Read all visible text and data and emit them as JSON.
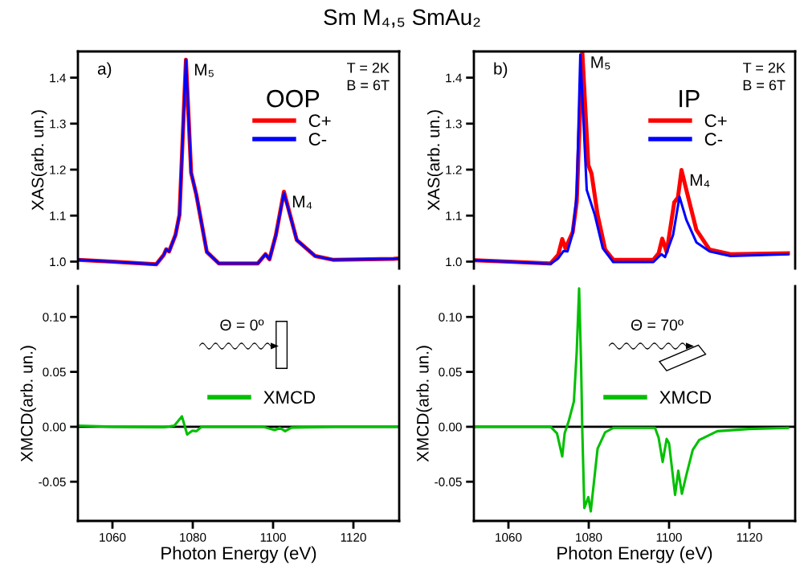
{
  "chart_data": [
    {
      "type": "line",
      "title": "Sm M₄,₅ SmAu₂",
      "ylabel": "XAS(arb. un.)",
      "xlim": [
        1051.4,
        1131.4
      ],
      "ylim": [
        0.985,
        1.457
      ],
      "yticks": [
        {
          "value": 1.0,
          "label": "1.0"
        },
        1.1,
        1.2,
        1.3,
        1.4
      ],
      "tick_labels": "y",
      "legend": "top right",
      "legend_title": "OOP",
      "grid": false,
      "x": [
        1051.4,
        1060,
        1070.9,
        1072.8,
        1073.4,
        1074.1,
        1075.7,
        1076.7,
        1078.3,
        1079.6,
        1080.9,
        1083.5,
        1086.5,
        1096.2,
        1098.1,
        1099.1,
        1100.7,
        1102.7,
        1105.9,
        1110.5,
        1114.9,
        1130,
        1131.4
      ],
      "series": [
        {
          "name": "C+",
          "color": "#ff0000",
          "values": [
            1.004,
            1.0,
            0.994,
            1.015,
            1.027,
            1.022,
            1.058,
            1.102,
            1.439,
            1.193,
            1.145,
            1.021,
            0.996,
            0.996,
            1.016,
            1.005,
            1.058,
            1.152,
            1.047,
            1.012,
            1.004,
            1.006,
            1.007
          ]
        },
        {
          "name": "C-",
          "color": "#0000ff",
          "values": [
            1.004,
            1.0,
            0.994,
            1.015,
            1.027,
            1.022,
            1.058,
            1.102,
            1.439,
            1.193,
            1.145,
            1.021,
            0.996,
            0.996,
            1.016,
            1.005,
            1.058,
            1.149,
            1.047,
            1.012,
            1.004,
            1.006,
            1.007
          ]
        }
      ],
      "annotations": [
        {
          "text": "M₅",
          "x": 1078.3,
          "y": 1.439
        },
        {
          "text": "M₄",
          "x": 1102.7,
          "y": 1.152
        },
        "a)",
        "T = 2K",
        "B = 6T"
      ]
    },
    {
      "type": "line",
      "xlabel": "Photon Energy (eV)",
      "ylabel": "XMCD(arb. un.)",
      "xlim": [
        1051.4,
        1131.4
      ],
      "ylim": [
        -0.0857,
        0.128
      ],
      "xticks": [
        1060,
        1080,
        1100,
        1120
      ],
      "yticks": [
        {
          "value": -0.05,
          "label": "-0.05"
        },
        {
          "value": 0,
          "label": "0.00"
        },
        {
          "value": 0.05,
          "label": "0.05"
        },
        {
          "value": 0.1,
          "label": "0.10"
        }
      ],
      "legend": "right",
      "grid": false,
      "ref_lines": [
        {
          "axis": "y",
          "value": 0,
          "color": "#000000"
        }
      ],
      "series": [
        {
          "name": "XMCD",
          "color": "#00c000",
          "x": [
            1051.5,
            1060,
            1072.8,
            1075.4,
            1077.3,
            1078.6,
            1079.9,
            1080.9,
            1082.2,
            1090,
            1097.5,
            1100.4,
            1101.7,
            1103.0,
            1104.6,
            1115,
            1130,
            1131.4
          ],
          "values": [
            0.001,
            0.0,
            -0.0005,
            0.001,
            0.0095,
            -0.007,
            -0.0036,
            -0.004,
            0.0,
            0.0,
            0.0,
            -0.003,
            -0.001,
            -0.004,
            -0.0007,
            0.0,
            0.0,
            0.0
          ]
        }
      ],
      "annotations": [
        "Θ = 0º"
      ]
    },
    {
      "type": "line",
      "ylabel": "XAS(arb. un.)",
      "xlim": [
        1051.4,
        1131.4
      ],
      "ylim": [
        0.985,
        1.457
      ],
      "yticks": [
        {
          "value": 1.0,
          "label": "1.0"
        },
        1.1,
        1.2,
        1.3,
        1.4
      ],
      "tick_labels": "y",
      "legend": "top right",
      "legend_title": "IP",
      "grid": false,
      "series": [
        {
          "name": "C+",
          "color": "#ff0000",
          "x": [
            1051.6,
            1060,
            1070.5,
            1072.4,
            1073.4,
            1074.2,
            1076.0,
            1077.0,
            1078.4,
            1079.9,
            1080.7,
            1082.2,
            1084.1,
            1086.1,
            1096.1,
            1097.4,
            1098.3,
            1099.4,
            1101.3,
            1102.2,
            1103.1,
            1104.3,
            1106.8,
            1110.1,
            1115.3,
            1129.6
          ],
          "values": [
            1.003,
            1.0,
            0.996,
            1.015,
            1.049,
            1.029,
            1.064,
            1.129,
            1.455,
            1.21,
            1.191,
            1.102,
            1.026,
            1.004,
            1.004,
            1.018,
            1.05,
            1.021,
            1.129,
            1.139,
            1.199,
            1.156,
            1.069,
            1.026,
            1.016,
            1.018
          ]
        },
        {
          "name": "C-",
          "color": "#0000ff",
          "x": [
            1051.6,
            1060,
            1070.5,
            1072.4,
            1073.7,
            1074.7,
            1076.0,
            1077.0,
            1077.9,
            1079.5,
            1081.5,
            1083.5,
            1086.1,
            1096.1,
            1098.1,
            1099.0,
            1101.0,
            1102.6,
            1104.3,
            1106.8,
            1110.1,
            1115.3,
            1129.6
          ],
          "values": [
            1.003,
            1.0,
            0.995,
            1.007,
            1.023,
            1.022,
            1.061,
            1.145,
            1.45,
            1.156,
            1.102,
            1.029,
            0.999,
            0.999,
            1.016,
            1.01,
            1.058,
            1.141,
            1.091,
            1.042,
            1.022,
            1.012,
            1.016
          ]
        }
      ],
      "annotations": [
        {
          "text": "M₅",
          "x": 1078.4,
          "y": 1.455
        },
        {
          "text": "M₄",
          "x": 1103.1,
          "y": 1.199
        },
        "b)",
        "T = 2K",
        "B = 6T"
      ]
    },
    {
      "type": "line",
      "xlabel": "Photon Energy (eV)",
      "ylabel": "XMCD(arb. un.)",
      "xlim": [
        1051.4,
        1131.4
      ],
      "ylim": [
        -0.0857,
        0.128
      ],
      "xticks": [
        1060,
        1080,
        1100,
        1120
      ],
      "yticks": [
        {
          "value": -0.05,
          "label": "-0.05"
        },
        {
          "value": 0,
          "label": "0.00"
        },
        {
          "value": 0.05,
          "label": "0.05"
        },
        {
          "value": 0.1,
          "label": "0.10"
        }
      ],
      "legend": "right",
      "grid": false,
      "ref_lines": [
        {
          "axis": "y",
          "value": 0,
          "color": "#000000"
        }
      ],
      "series": [
        {
          "name": "XMCD",
          "color": "#00c000",
          "x": [
            1051.6,
            1070.5,
            1072.1,
            1073.4,
            1074.0,
            1075.0,
            1076.3,
            1077.0,
            1077.6,
            1078.1,
            1078.4,
            1078.9,
            1079.9,
            1080.5,
            1082.2,
            1084.1,
            1086.1,
            1096.5,
            1097.4,
            1098.4,
            1099.4,
            1100.0,
            1101.5,
            1102.3,
            1103.2,
            1104.3,
            1105.9,
            1107.5,
            1112.0,
            1119.8,
            1129.6
          ],
          "values": [
            0.0,
            0.0,
            -0.006,
            -0.027,
            -0.006,
            0.005,
            0.023,
            0.068,
            0.126,
            0.056,
            -0.004,
            -0.074,
            -0.064,
            -0.077,
            -0.02,
            -0.005,
            -0.001,
            -0.001,
            -0.01,
            -0.032,
            -0.011,
            -0.015,
            -0.062,
            -0.04,
            -0.061,
            -0.044,
            -0.021,
            -0.012,
            -0.004,
            -0.002,
            -0.001
          ]
        }
      ],
      "annotations": [
        "Θ = 70º"
      ]
    }
  ]
}
